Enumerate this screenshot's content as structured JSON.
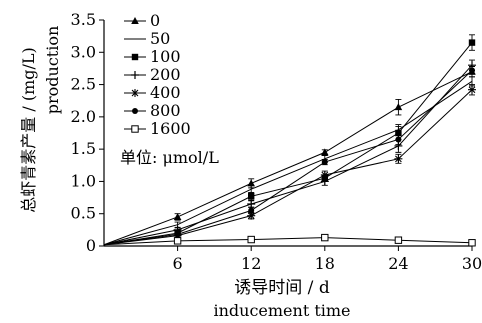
{
  "chart_data": {
    "type": "line",
    "title": "",
    "xlabel": "诱导时间 / d",
    "xlabel_en": "inducement time",
    "ylabel": "总虾青素产量 / (mg/L)",
    "ylabel_en": "production",
    "x": [
      0,
      6,
      12,
      18,
      24,
      30
    ],
    "x_ticks": [
      "6",
      "12",
      "18",
      "24",
      "30"
    ],
    "y_ticks": [
      "0",
      "0.5",
      "1.0",
      "1.5",
      "2.0",
      "2.5",
      "3.0",
      "3.5"
    ],
    "xlim": [
      0,
      30
    ],
    "ylim": [
      0,
      3.5
    ],
    "grid": false,
    "legend_position": "top-left",
    "legend_unit": "单位: μmol/L",
    "series": [
      {
        "name": "0",
        "marker": "triangle-filled",
        "values": [
          0.02,
          0.45,
          0.97,
          1.45,
          2.15,
          2.7
        ],
        "errors": [
          0,
          0.05,
          0.07,
          0.04,
          0.12,
          0.08
        ]
      },
      {
        "name": "50",
        "marker": "none",
        "values": [
          0.02,
          0.33,
          0.88,
          1.35,
          1.8,
          2.55
        ],
        "errors": [
          0,
          0.04,
          0.06,
          0.05,
          0.08,
          0.07
        ]
      },
      {
        "name": "100",
        "marker": "square-filled",
        "values": [
          0.02,
          0.2,
          0.77,
          1.05,
          1.75,
          3.15
        ],
        "errors": [
          0,
          0.03,
          0.06,
          0.05,
          0.1,
          0.12
        ]
      },
      {
        "name": "200",
        "marker": "plus",
        "values": [
          0.02,
          0.25,
          0.65,
          1.0,
          1.55,
          2.8
        ],
        "errors": [
          0,
          0.03,
          0.05,
          0.06,
          0.1,
          0.08
        ]
      },
      {
        "name": "400",
        "marker": "asterisk",
        "values": [
          0.02,
          0.16,
          0.47,
          1.1,
          1.35,
          2.42
        ],
        "errors": [
          0,
          0.03,
          0.05,
          0.06,
          0.07,
          0.08
        ]
      },
      {
        "name": "800",
        "marker": "circle-filled",
        "values": [
          0.02,
          0.18,
          0.55,
          1.3,
          1.65,
          2.72
        ],
        "errors": [
          0,
          0.03,
          0.05,
          0.04,
          0.08,
          0.06
        ]
      },
      {
        "name": "1600",
        "marker": "square-open",
        "values": [
          0.02,
          0.08,
          0.1,
          0.13,
          0.09,
          0.05
        ],
        "errors": [
          0,
          0.02,
          0.02,
          0.02,
          0.02,
          0.01
        ]
      }
    ]
  }
}
